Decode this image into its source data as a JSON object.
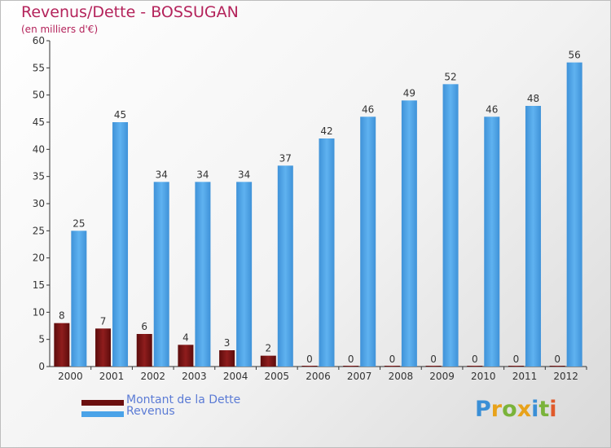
{
  "title": "Revenus/Dette - BOSSUGAN",
  "subtitle": "(en milliers d'€)",
  "logo_text": "Proxiti",
  "chart_data": {
    "type": "bar",
    "categories": [
      "2000",
      "2001",
      "2002",
      "2003",
      "2004",
      "2005",
      "2006",
      "2007",
      "2008",
      "2009",
      "2010",
      "2011",
      "2012"
    ],
    "series": [
      {
        "name": "Montant de la Dette",
        "color": "#7a1414",
        "values": [
          8,
          7,
          6,
          4,
          3,
          2,
          0,
          0,
          0,
          0,
          0,
          0,
          0
        ]
      },
      {
        "name": "Revenus",
        "color": "#4aa3e8",
        "values": [
          25,
          45,
          34,
          34,
          34,
          37,
          42,
          46,
          49,
          52,
          46,
          48,
          56
        ]
      }
    ],
    "ylim": [
      0,
      60
    ],
    "yticks": [
      0,
      5,
      10,
      15,
      20,
      25,
      30,
      35,
      40,
      45,
      50,
      55,
      60
    ],
    "grid": false,
    "legend_position": "bottom-left"
  }
}
